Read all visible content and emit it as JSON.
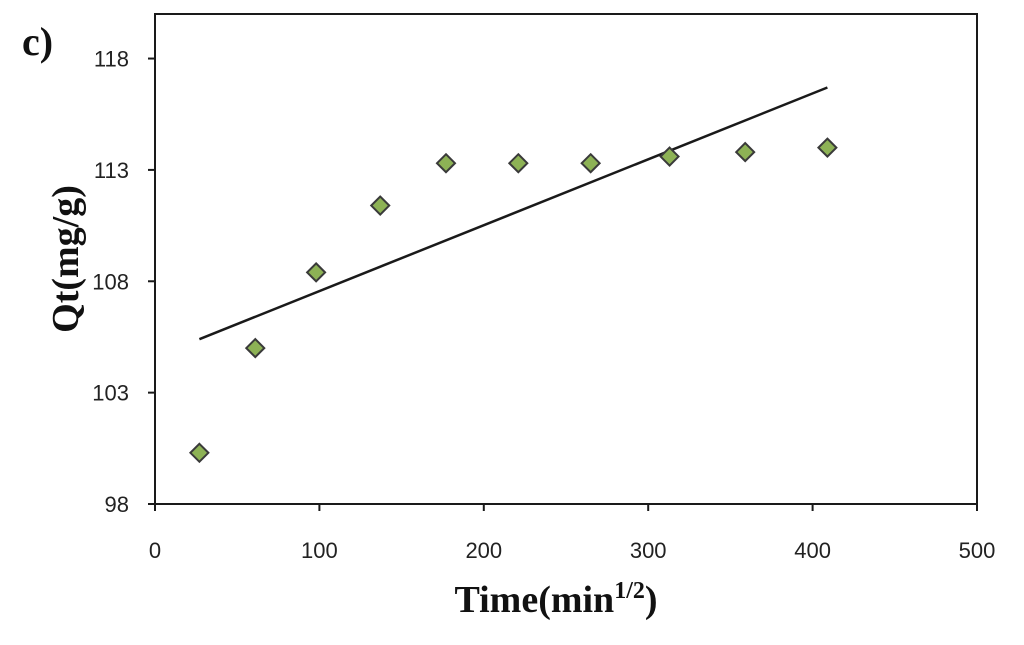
{
  "panel_label": "c)",
  "chart_data": {
    "type": "scatter",
    "xlabel": "Time(min",
    "xlabel_sup": "1/2",
    "xlabel_close": ")",
    "ylabel": "Qt(mg/g)",
    "xlim": [
      0,
      500
    ],
    "ylim": [
      98,
      120
    ],
    "xticks": [
      0,
      100,
      200,
      300,
      400,
      500
    ],
    "yticks": [
      98,
      103,
      108,
      113,
      118
    ],
    "grid": false,
    "marker_color": "#8db255",
    "marker_edge": "#3a3a3a",
    "line_color": "#1a1a1a",
    "series": [
      {
        "marker": "diamond",
        "x": [
          27,
          61,
          98,
          137,
          177,
          221,
          265,
          313,
          359,
          409
        ],
        "y": [
          100.3,
          105.0,
          108.4,
          111.4,
          113.3,
          113.3,
          113.3,
          113.6,
          113.8,
          114.0
        ]
      }
    ],
    "trendline": {
      "x": [
        27,
        409
      ],
      "y": [
        105.4,
        116.7
      ]
    }
  }
}
